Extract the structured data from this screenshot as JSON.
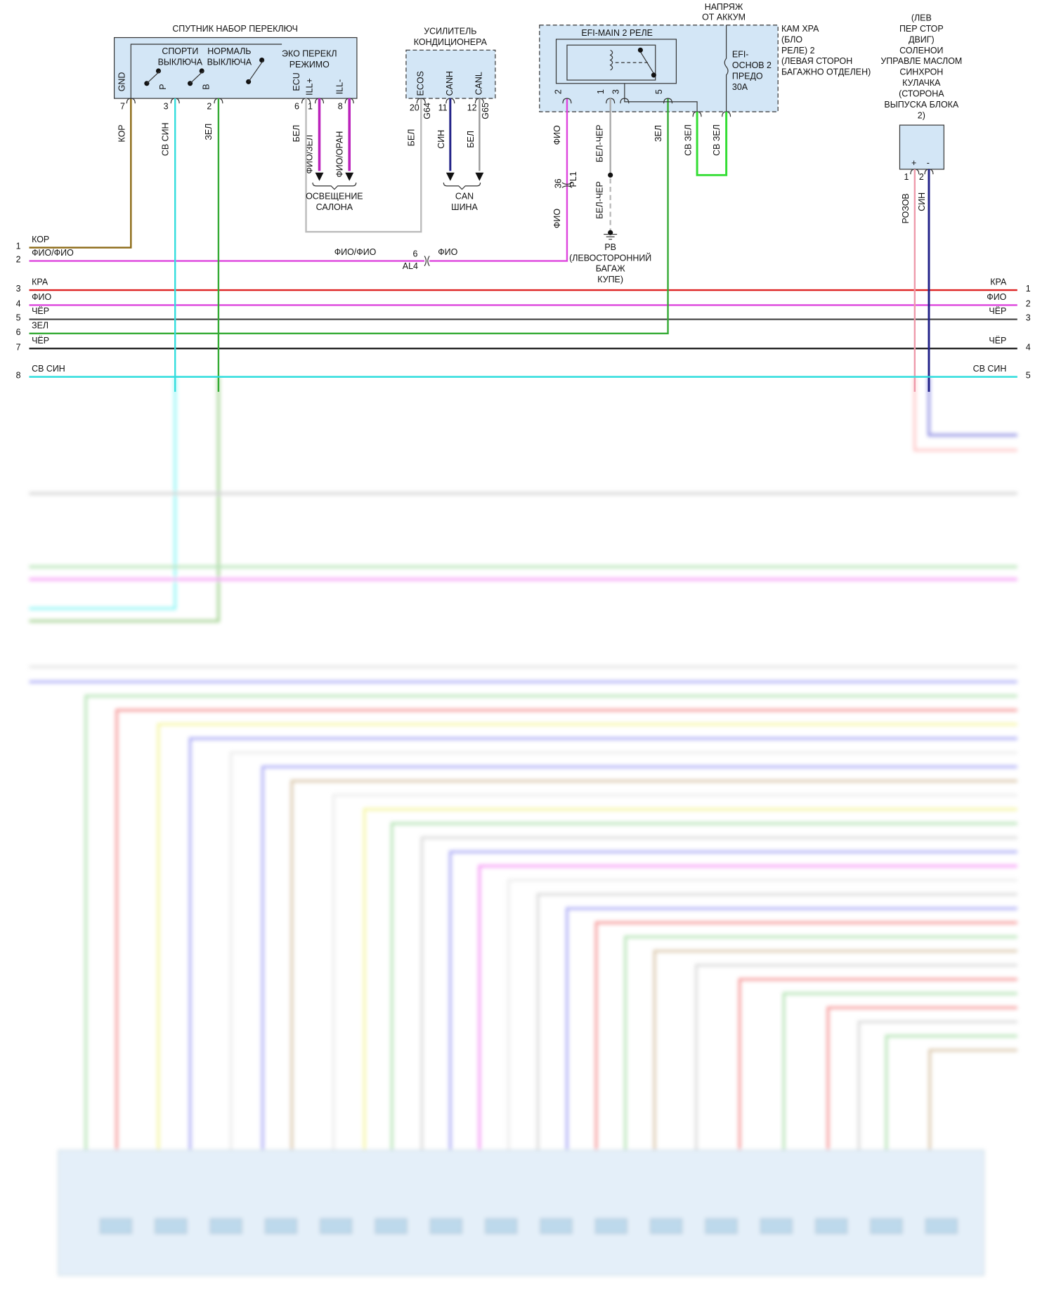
{
  "switch": {
    "title": "СПУТНИК НАБОР ПЕРЕКЛЮЧ",
    "sport": [
      "СПОРТИ",
      "ВЫКЛЮЧА"
    ],
    "normal": [
      "НОРМАЛЬ",
      "ВЫКЛЮЧА"
    ],
    "eco": [
      "ЭКО ПЕРЕКЛ",
      "РЕЖИМО"
    ],
    "pins": [
      {
        "name": "GND",
        "num": 7,
        "wire": "КОР"
      },
      {
        "name": "P",
        "num": 3,
        "wire": "СВ СИН"
      },
      {
        "name": "B",
        "num": 2,
        "wire": "ЗЕЛ"
      },
      {
        "name": "ECU",
        "num": 6,
        "wire": "БЕЛ"
      },
      {
        "name": "ILL+",
        "num": 1,
        "wire": "ФИО/ЗЕЛ"
      },
      {
        "name": "ILL-",
        "num": 8,
        "wire": "ФИО/ОРАН"
      }
    ]
  },
  "illumination": [
    "ОСВЕЩЕНИЕ",
    "САЛОНА"
  ],
  "amplifier": {
    "title": [
      "УСИЛИТЕЛЬ",
      "КОНДИЦИОНЕРА"
    ],
    "pins": [
      {
        "name": "ECOS",
        "num": 20,
        "conn": "G64",
        "wire": "БЕЛ"
      },
      {
        "name": "CANH",
        "num": 11,
        "wire": "СИН"
      },
      {
        "name": "CANL",
        "num": 12,
        "conn": "G65",
        "wire": "БЕЛ"
      }
    ]
  },
  "can_bus": [
    "CAN",
    "ШИНА"
  ],
  "relay_box": {
    "supply": [
      "НАПРЯЖ",
      "ОТ АККУМ"
    ],
    "relay": "EFI-MAIN 2 РЕЛЕ",
    "fuse": [
      "EFI-",
      "ОСНОВ 2",
      "ПРЕДО",
      "30A"
    ],
    "title": [
      "КАМ ХРА",
      "(БЛО",
      "РЕЛЕ) 2",
      "(ЛЕВАЯ СТОРОН",
      "БАГАЖНО ОТДЕЛЕН)"
    ],
    "pins": [
      {
        "num": 2,
        "wire": "ФИО"
      },
      {
        "num": 1,
        "wire": "БЕЛ-ЧЕР"
      },
      {
        "num": 3
      },
      {
        "num": 5,
        "wire": "ЗЕЛ"
      }
    ],
    "fuse_wires": [
      "СВ ЗЕЛ",
      "СВ ЗЕЛ"
    ]
  },
  "pl1": {
    "pin": 36,
    "conn": "PL1",
    "wire_below": "ФИО"
  },
  "bel_cher_below": "БЕЛ-ЧЕР",
  "ground": [
    "PB",
    "(ЛЕВОСТОРОННИЙ",
    "БАГАЖ",
    "КУПЕ)"
  ],
  "solenoid": {
    "title": [
      "(ЛЕВ",
      "ПЕР СТОР",
      "ДВИГ)",
      "СОЛЕНОИ",
      "УПРАВЛЕ МАСЛОМ",
      "СИНХРОН",
      "КУЛАЧКА",
      "(СТОРОНА",
      "ВЫПУСКА БЛОКА",
      "2)"
    ],
    "pins": [
      {
        "sign": "+",
        "num": 1,
        "wire": "РОЗОВ"
      },
      {
        "sign": "-",
        "num": 2,
        "wire": "СИН"
      }
    ]
  },
  "al4": {
    "pin": 6,
    "conn": "AL4",
    "left_wire": "ФИО/ФИО",
    "right_wire": "ФИО"
  },
  "left_bus": [
    {
      "num": 1,
      "wire": "КОР"
    },
    {
      "num": 2,
      "wire": "ФИО/ФИО"
    },
    {
      "num": 3,
      "wire": "КРА"
    },
    {
      "num": 4,
      "wire": "ФИО"
    },
    {
      "num": 5,
      "wire": "ЧЁР"
    },
    {
      "num": 6,
      "wire": "ЗЕЛ"
    },
    {
      "num": 7,
      "wire": "ЧЁР"
    },
    {
      "num": 8,
      "wire": "СВ СИН"
    }
  ],
  "right_bus": [
    {
      "num": 1,
      "wire": "КРА"
    },
    {
      "num": 2,
      "wire": "ФИО"
    },
    {
      "num": 3,
      "wire": "ЧЁР"
    },
    {
      "num": 4,
      "wire": "ЧЁР"
    },
    {
      "num": 5,
      "wire": "СВ СИН"
    }
  ]
}
